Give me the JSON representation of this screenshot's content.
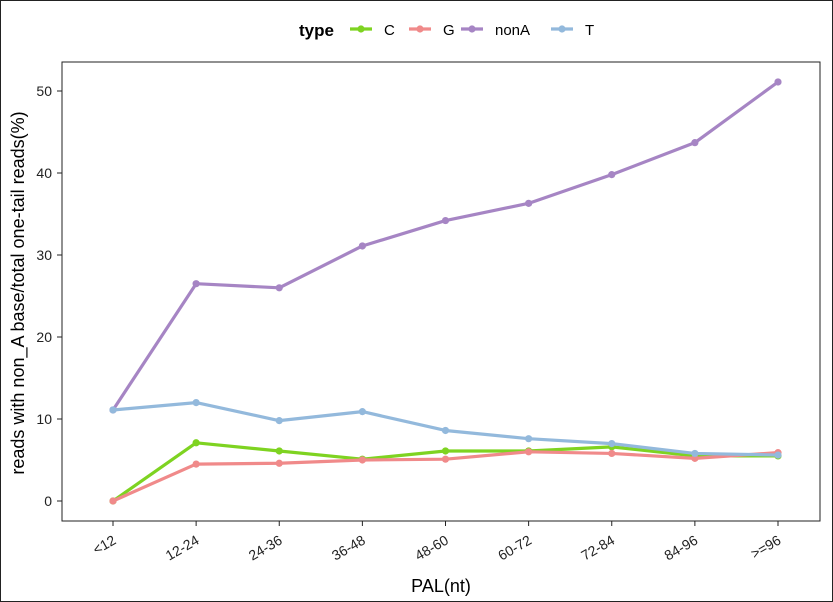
{
  "chart_data": {
    "type": "line",
    "title": "",
    "xlabel": "PAL(nt)",
    "ylabel": "reads with non_A base/total one-tail reads(%)",
    "categories": [
      "<12",
      "12-24",
      "24-36",
      "36-48",
      "48-60",
      "60-72",
      "72-84",
      "84-96",
      ">=96"
    ],
    "ylim": [
      -2.5,
      53.5
    ],
    "yticks": [
      0,
      10,
      20,
      30,
      40,
      50
    ],
    "grid": false,
    "legend": {
      "title": "type",
      "placement": "top"
    },
    "series": [
      {
        "name": "C",
        "color": "#7ed321",
        "values": [
          0.0,
          7.1,
          6.1,
          5.1,
          6.1,
          6.1,
          6.6,
          5.5,
          5.5
        ]
      },
      {
        "name": "G",
        "color": "#f08a8a",
        "values": [
          0.0,
          4.5,
          4.6,
          5.0,
          5.1,
          6.0,
          5.8,
          5.2,
          5.9
        ]
      },
      {
        "name": "nonA",
        "color": "#a685c4",
        "values": [
          11.1,
          26.5,
          26.0,
          31.1,
          34.2,
          36.3,
          39.8,
          43.7,
          51.1
        ]
      },
      {
        "name": "T",
        "color": "#93b9dc",
        "values": [
          11.1,
          12.0,
          9.8,
          10.9,
          8.6,
          7.6,
          7.0,
          5.8,
          5.6
        ]
      }
    ]
  }
}
